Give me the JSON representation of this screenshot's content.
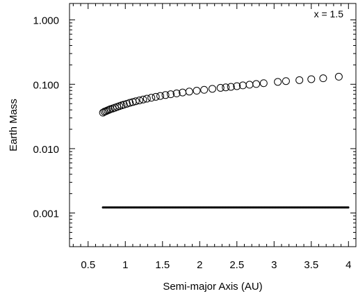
{
  "chart_data": {
    "type": "scatter",
    "title": "",
    "annotation": "x = 1.5",
    "xlabel": "Semi-major Axis (AU)",
    "ylabel": "Earth Mass",
    "xlim": [
      0.25,
      4.1
    ],
    "ylim": [
      0.0003,
      1.8
    ],
    "yscale": "log",
    "grid": false,
    "x_ticks": [
      {
        "value": 0.5,
        "label": "0.5"
      },
      {
        "value": 1,
        "label": "1"
      },
      {
        "value": 1.5,
        "label": "1.5"
      },
      {
        "value": 2,
        "label": "2"
      },
      {
        "value": 2.5,
        "label": "2.5"
      },
      {
        "value": 3,
        "label": "3"
      },
      {
        "value": 3.5,
        "label": "3.5"
      },
      {
        "value": 4,
        "label": "4"
      }
    ],
    "y_ticks": [
      {
        "value": 0.001,
        "label": "0.001"
      },
      {
        "value": 0.01,
        "label": "0.010"
      },
      {
        "value": 0.1,
        "label": "0.100"
      },
      {
        "value": 1,
        "label": "1.000"
      }
    ],
    "series": [
      {
        "marker": "open-circle",
        "x": [
          0.7,
          0.72,
          0.74,
          0.76,
          0.78,
          0.8,
          0.83,
          0.86,
          0.89,
          0.92,
          0.95,
          0.98,
          1.02,
          1.06,
          1.1,
          1.14,
          1.19,
          1.24,
          1.29,
          1.35,
          1.41,
          1.47,
          1.54,
          1.61,
          1.69,
          1.77,
          1.86,
          1.96,
          2.06,
          2.17,
          2.28,
          2.35,
          2.42,
          2.5,
          2.58,
          2.67,
          2.76,
          2.86,
          3.05,
          3.16,
          3.34,
          3.5,
          3.66,
          3.87
        ],
        "y": [
          0.0362,
          0.0375,
          0.0382,
          0.0392,
          0.04,
          0.041,
          0.042,
          0.0432,
          0.0445,
          0.0458,
          0.047,
          0.0482,
          0.0498,
          0.0515,
          0.053,
          0.0545,
          0.0562,
          0.058,
          0.0598,
          0.0618,
          0.0638,
          0.0658,
          0.068,
          0.07,
          0.0722,
          0.0745,
          0.077,
          0.0795,
          0.082,
          0.085,
          0.088,
          0.0895,
          0.0912,
          0.0935,
          0.096,
          0.0985,
          0.101,
          0.104,
          0.109,
          0.112,
          0.116,
          0.12,
          0.124,
          0.131
        ]
      },
      {
        "marker": "small-dot",
        "x": [
          0.7,
          4.0
        ],
        "y": [
          0.00122,
          0.00122
        ]
      }
    ]
  }
}
